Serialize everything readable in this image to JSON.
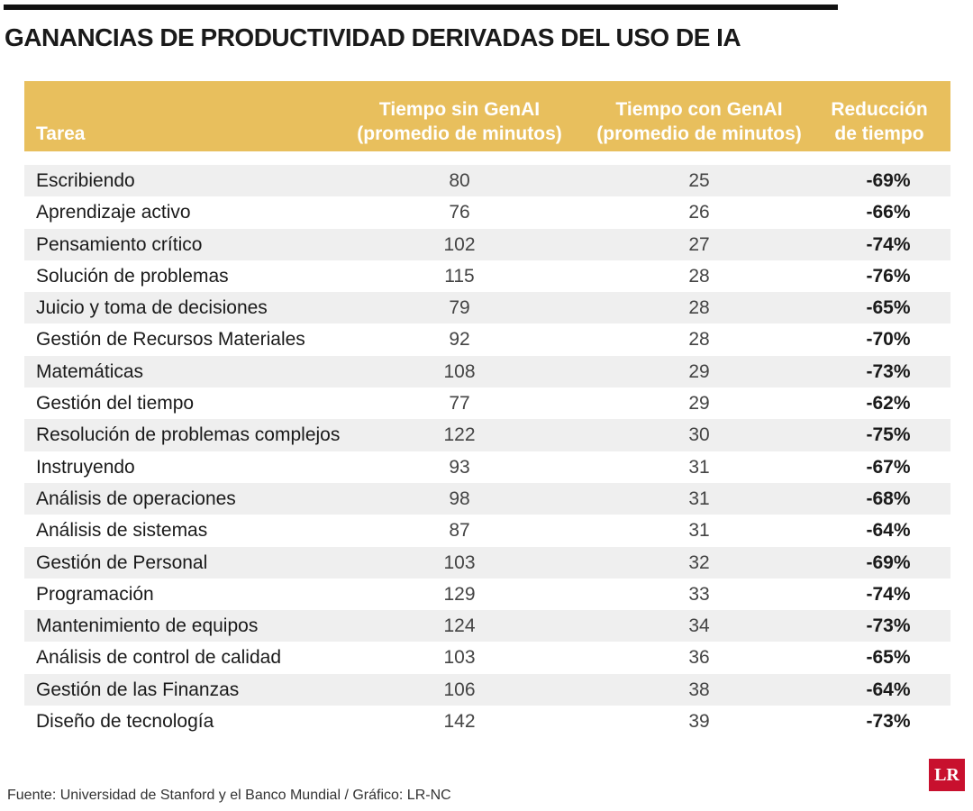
{
  "header": {
    "title": "GANANCIAS DE PRODUCTIVIDAD DERIVADAS DEL USO DE IA"
  },
  "table": {
    "columns": [
      [
        "Tarea"
      ],
      [
        "Tiempo sin GenAI",
        "(promedio de minutos)"
      ],
      [
        "Tiempo con GenAI",
        "(promedio de minutos)"
      ],
      [
        "Reducción",
        "de tiempo"
      ]
    ],
    "rows": [
      [
        "Escribiendo",
        80,
        25,
        "-69%"
      ],
      [
        "Aprendizaje activo",
        76,
        26,
        "-66%"
      ],
      [
        "Pensamiento crítico",
        102,
        27,
        "-74%"
      ],
      [
        "Solución de problemas",
        115,
        28,
        "-76%"
      ],
      [
        "Juicio y toma de decisiones",
        79,
        28,
        "-65%"
      ],
      [
        "Gestión de Recursos Materiales",
        92,
        28,
        "-70%"
      ],
      [
        "Matemáticas",
        108,
        29,
        "-73%"
      ],
      [
        "Gestión del tiempo",
        77,
        29,
        "-62%"
      ],
      [
        "Resolución de problemas complejos",
        122,
        30,
        "-75%"
      ],
      [
        "Instruyendo",
        93,
        31,
        "-67%"
      ],
      [
        "Análisis de operaciones",
        98,
        31,
        "-68%"
      ],
      [
        "Análisis de sistemas",
        87,
        31,
        "-64%"
      ],
      [
        "Gestión de Personal",
        103,
        32,
        "-69%"
      ],
      [
        "Programación",
        129,
        33,
        "-74%"
      ],
      [
        "Mantenimiento de equipos",
        124,
        34,
        "-73%"
      ],
      [
        "Análisis de control de calidad",
        103,
        36,
        "-65%"
      ],
      [
        "Gestión de las Finanzas",
        106,
        38,
        "-64%"
      ],
      [
        "Diseño de tecnología",
        142,
        39,
        "-73%"
      ]
    ]
  },
  "footer": {
    "source": "Fuente: Universidad de Stanford y el Banco Mundial / Gráfico: LR-NC",
    "logo": "LR"
  }
}
